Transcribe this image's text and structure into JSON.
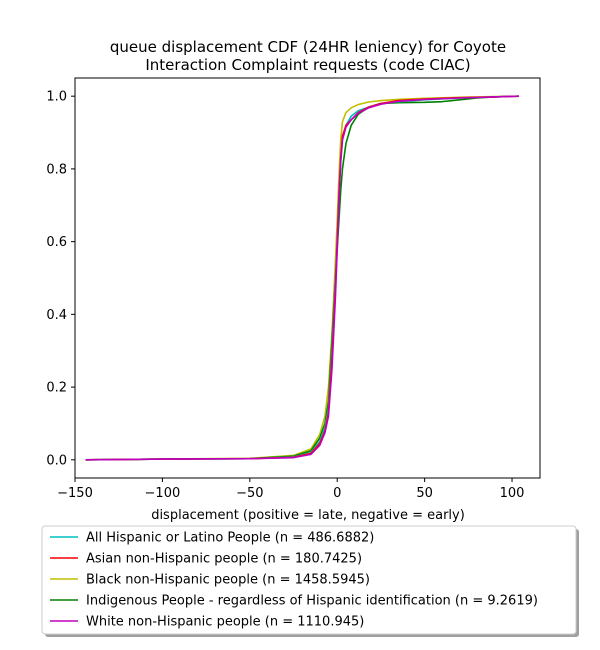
{
  "chart_data": {
    "type": "line",
    "title": "queue displacement CDF (24HR leniency) for Coyote\nInteraction Complaint  requests (code CIAC)",
    "xlabel": "displacement (positive = late, negative = early)",
    "ylabel": "",
    "xlim": [
      -150,
      116
    ],
    "ylim": [
      -0.05,
      1.05
    ],
    "xticks": [
      -150,
      -100,
      -50,
      0,
      50,
      100
    ],
    "xtick_labels": [
      "−150",
      "−100",
      "−50",
      "0",
      "50",
      "100"
    ],
    "yticks": [
      0.0,
      0.2,
      0.4,
      0.6,
      0.8,
      1.0
    ],
    "ytick_labels": [
      "0.0",
      "0.2",
      "0.4",
      "0.6",
      "0.8",
      "1.0"
    ],
    "grid": false,
    "legend_placement": "below",
    "series": [
      {
        "name": "All Hispanic or Latino People (n = 486.6882)",
        "color": "#00bfbf",
        "x": [
          -144,
          -100,
          -50,
          -25,
          -15,
          -10,
          -7,
          -5,
          -3,
          -1,
          0,
          1,
          2,
          3,
          5,
          8,
          12,
          18,
          25,
          35,
          50,
          70,
          90,
          104
        ],
        "y": [
          0.0,
          0.002,
          0.003,
          0.008,
          0.02,
          0.05,
          0.09,
          0.14,
          0.3,
          0.5,
          0.6,
          0.72,
          0.82,
          0.88,
          0.92,
          0.945,
          0.96,
          0.97,
          0.98,
          0.985,
          0.99,
          0.995,
          0.998,
          1.0
        ]
      },
      {
        "name": "Asian non-Hispanic people (n = 180.7425)",
        "color": "#ff0000",
        "x": [
          -144,
          -100,
          -50,
          -25,
          -15,
          -10,
          -7,
          -5,
          -3,
          -1,
          0,
          1,
          2,
          3,
          5,
          8,
          12,
          18,
          25,
          35,
          50,
          70,
          90,
          104
        ],
        "y": [
          0.0,
          0.002,
          0.003,
          0.007,
          0.018,
          0.045,
          0.08,
          0.13,
          0.28,
          0.48,
          0.6,
          0.73,
          0.83,
          0.89,
          0.92,
          0.935,
          0.955,
          0.97,
          0.98,
          0.988,
          0.992,
          0.996,
          0.998,
          1.0
        ]
      },
      {
        "name": "Black non-Hispanic people (n = 1458.5945)",
        "color": "#bfbf00",
        "x": [
          -144,
          -100,
          -50,
          -25,
          -15,
          -10,
          -7,
          -5,
          -3,
          -1,
          0,
          1,
          2,
          3,
          5,
          8,
          12,
          18,
          25,
          35,
          50,
          70,
          90,
          104
        ],
        "y": [
          0.0,
          0.002,
          0.004,
          0.012,
          0.03,
          0.07,
          0.12,
          0.2,
          0.35,
          0.55,
          0.66,
          0.78,
          0.88,
          0.93,
          0.955,
          0.968,
          0.977,
          0.984,
          0.988,
          0.991,
          0.994,
          0.997,
          0.999,
          1.0
        ]
      },
      {
        "name": "Indigenous People - regardless of Hispanic identification (n = 9.2619)",
        "color": "#008000",
        "x": [
          -144,
          -100,
          -50,
          -25,
          -15,
          -10,
          -7,
          -5,
          -3,
          -1,
          0,
          1,
          2,
          3,
          5,
          8,
          12,
          18,
          25,
          35,
          50,
          60,
          70,
          80,
          90,
          104
        ],
        "y": [
          0.0,
          0.002,
          0.003,
          0.01,
          0.025,
          0.06,
          0.1,
          0.16,
          0.33,
          0.5,
          0.58,
          0.66,
          0.74,
          0.8,
          0.87,
          0.92,
          0.95,
          0.97,
          0.98,
          0.982,
          0.983,
          0.985,
          0.99,
          0.995,
          0.998,
          1.0
        ]
      },
      {
        "name": "White non-Hispanic people (n = 1110.945)",
        "color": "#bf00bf",
        "x": [
          -144,
          -100,
          -50,
          -25,
          -15,
          -10,
          -7,
          -5,
          -3,
          -1,
          0,
          1,
          2,
          3,
          5,
          8,
          12,
          18,
          25,
          35,
          50,
          70,
          90,
          104
        ],
        "y": [
          0.0,
          0.002,
          0.003,
          0.006,
          0.015,
          0.04,
          0.075,
          0.12,
          0.25,
          0.45,
          0.58,
          0.72,
          0.82,
          0.88,
          0.915,
          0.935,
          0.953,
          0.968,
          0.978,
          0.986,
          0.991,
          0.995,
          0.998,
          1.0
        ]
      }
    ]
  }
}
